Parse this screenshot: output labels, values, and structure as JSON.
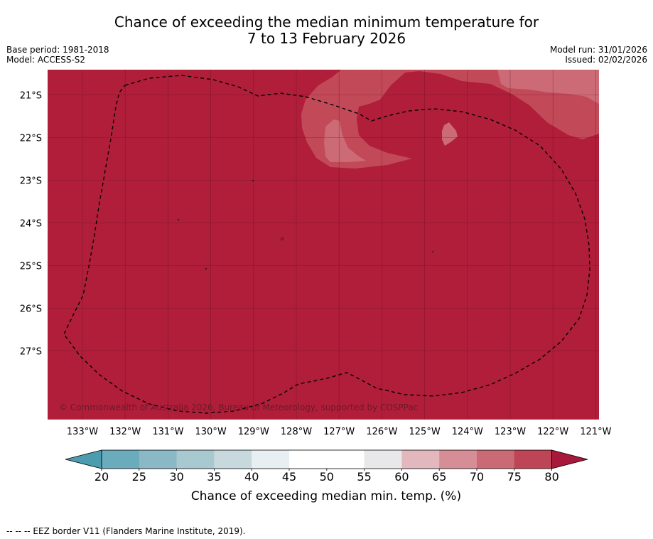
{
  "title": {
    "line1": "Chance of exceeding the median minimum temperature for",
    "line2": "7 to 13 February 2026"
  },
  "meta_left": {
    "base_period": "Base period: 1981-2018",
    "model": "Model: ACCESS-S2"
  },
  "meta_right": {
    "model_run": "Model run: 31/01/2026",
    "issued": "Issued: 02/02/2026"
  },
  "map": {
    "lon_labels": [
      "133°W",
      "132°W",
      "131°W",
      "130°W",
      "129°W",
      "128°W",
      "127°W",
      "126°W",
      "125°W",
      "124°W",
      "123°W",
      "122°W",
      "121°W"
    ],
    "lat_labels": [
      "21°S",
      "22°S",
      "23°S",
      "24°S",
      "25°S",
      "26°S",
      "27°S"
    ],
    "copyright": "© Commonwealth of Australia 2026, Bureau of Meteorology, supported by COSPPac",
    "base_color": "#b01e3a",
    "zone_colors": {
      "c75": "#c24a58",
      "c70": "#cc6b76",
      "c65": "#d98d95"
    }
  },
  "colorbar": {
    "ticks": [
      "20",
      "25",
      "30",
      "35",
      "40",
      "45",
      "50",
      "55",
      "60",
      "65",
      "70",
      "75",
      "80"
    ],
    "colors": [
      "#6aabbc",
      "#8ab8c5",
      "#a9c9d0",
      "#c8d9de",
      "#e8eff2",
      "#ffffff",
      "#ffffff",
      "#e8e8ea",
      "#e2b8be",
      "#d68e96",
      "#c96a75",
      "#bd4555"
    ],
    "under_color": "#4c9caf",
    "over_color": "#a8183a",
    "label": "Chance of exceeding median min. temp. (%)"
  },
  "footnote": "--  --  -- EEZ border V11 (Flanders Marine Institute, 2019)."
}
